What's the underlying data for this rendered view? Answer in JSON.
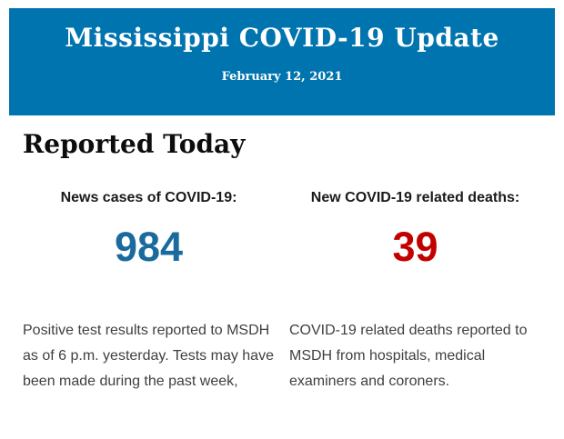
{
  "header": {
    "title": "Mississippi COVID-19 Update",
    "date": "February 12, 2021",
    "background_color": "#0074ae",
    "text_color": "#ffffff"
  },
  "main": {
    "section_title": "Reported Today",
    "stats": [
      {
        "label": "News cases of COVID-19:",
        "value": "984",
        "value_color": "#1b6a9e",
        "description": "Positive test results reported to MSDH as of 6 p.m. yesterday. Tests may have been made during the past week,"
      },
      {
        "label": "New COVID-19 related deaths:",
        "value": "39",
        "value_color": "#c20000",
        "description": "COVID-19 related deaths reported to MSDH from hospitals, medical examiners and coroners."
      }
    ]
  }
}
